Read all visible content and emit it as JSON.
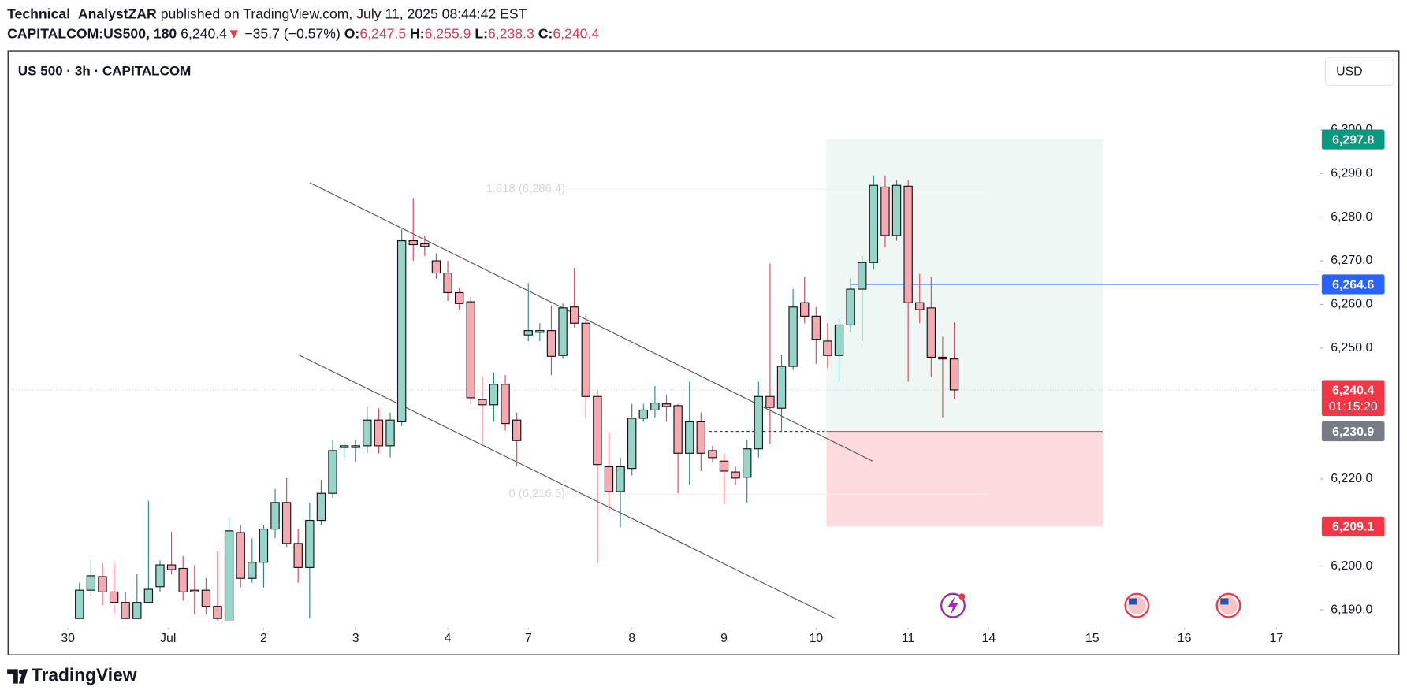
{
  "header": {
    "author": "Technical_AnalystZAR",
    "published": "published on TradingView.com, July 11, 2025 08:44:42 EST",
    "symbol": "CAPITALCOM:US500, 180",
    "last": "6,240.4",
    "arrow": "▼",
    "change": "−35.7 (−0.57%)",
    "ohlc": [
      {
        "label": "O:",
        "value": "6,247.5"
      },
      {
        "label": "H:",
        "value": "6,255.9"
      },
      {
        "label": "L:",
        "value": "6,238.3"
      },
      {
        "label": "C:",
        "value": "6,240.4"
      }
    ]
  },
  "footer": {
    "brand": "TradingView"
  },
  "chart_data": {
    "type": "candlestick",
    "title": "US 500 · 3h · CAPITALCOM",
    "currency": "USD",
    "up_color": "#97d5c8",
    "down_color": "#f5a9b1",
    "outline_color": "#111111",
    "open": [
      6188.0,
      6194.5,
      6197.6,
      6194.1,
      6191.7,
      6188.0,
      6191.7,
      6195.3,
      6200.3,
      6199.5,
      6194.5,
      6194.5,
      6190.8,
      6187.0,
      6207.7,
      6197.2,
      6200.9,
      6208.5,
      6214.6,
      6205.2,
      6199.7,
      6210.5,
      6216.7,
      6227.2,
      6227.2,
      6227.6,
      6233.5,
      6227.6,
      6233.1,
      6274.6,
      6273.9,
      6270.0,
      6267.2,
      6262.7,
      6260.6,
      6238.2,
      6237.0,
      6241.7,
      6233.5,
      6253.0,
      6253.6,
      6254.0,
      6248.3,
      6259.4,
      6255.7,
      6238.9,
      6222.8,
      6217.1,
      6222.4,
      6233.9,
      6235.8,
      6237.2,
      6236.8,
      6225.9,
      6233.1,
      6226.5,
      6224.1,
      6221.6,
      6220.4,
      6226.9,
      6238.9,
      6236.2,
      6245.8,
      6260.4,
      6257.3,
      6251.6,
      6248.3,
      6255.3,
      6263.5,
      6269.6,
      6286.9,
      6275.8,
      6287.1,
      6260.4,
      6259.2,
      6247.9,
      6247.5
    ],
    "high": [
      6196.2,
      6201.3,
      6200.7,
      6200.7,
      6194.1,
      6198.2,
      6215.0,
      6201.3,
      6207.9,
      6202.3,
      6200.3,
      6197.2,
      6203.4,
      6210.9,
      6209.5,
      6206.4,
      6209.5,
      6217.7,
      6220.2,
      6208.5,
      6214.6,
      6219.8,
      6229.0,
      6228.6,
      6229.0,
      6236.6,
      6236.2,
      6235.2,
      6277.2,
      6284.4,
      6275.8,
      6271.7,
      6270.0,
      6263.9,
      6261.8,
      6243.4,
      6244.4,
      6243.8,
      6235.2,
      6264.9,
      6255.7,
      6259.8,
      6260.2,
      6268.4,
      6257.7,
      6240.3,
      6231.0,
      6224.9,
      6237.2,
      6237.2,
      6241.3,
      6239.3,
      6237.2,
      6242.3,
      6235.2,
      6227.6,
      6225.9,
      6222.8,
      6229.0,
      6242.3,
      6269.4,
      6248.5,
      6263.5,
      6266.3,
      6259.4,
      6255.7,
      6256.7,
      6265.9,
      6271.1,
      6289.5,
      6289.5,
      6288.5,
      6288.5,
      6267.0,
      6266.3,
      6252.6,
      6255.9
    ],
    "low": [
      6188.0,
      6193.1,
      6191.0,
      6189.0,
      6188.0,
      6188.0,
      6191.7,
      6194.1,
      6198.2,
      6192.1,
      6189.0,
      6189.0,
      6186.0,
      6186.0,
      6195.1,
      6196.2,
      6195.1,
      6206.4,
      6204.4,
      6196.2,
      6188.0,
      6209.5,
      6215.7,
      6224.9,
      6223.9,
      6225.9,
      6225.9,
      6224.9,
      6232.1,
      6270.0,
      6271.1,
      6265.9,
      6260.8,
      6258.8,
      6237.2,
      6228.0,
      6233.1,
      6231.1,
      6222.8,
      6251.6,
      6251.6,
      6243.8,
      6247.5,
      6254.7,
      6234.1,
      6200.7,
      6212.6,
      6208.9,
      6220.8,
      6233.1,
      6234.1,
      6233.1,
      6216.7,
      6218.7,
      6221.8,
      6223.9,
      6214.2,
      6218.7,
      6214.6,
      6224.9,
      6228.0,
      6231.0,
      6245.0,
      6255.7,
      6246.4,
      6245.4,
      6242.3,
      6253.6,
      6251.6,
      6268.0,
      6273.1,
      6274.6,
      6242.3,
      6255.7,
      6243.4,
      6234.1,
      6238.3
    ],
    "close": [
      6194.5,
      6197.8,
      6194.1,
      6191.7,
      6188.0,
      6191.7,
      6194.7,
      6200.3,
      6199.2,
      6194.1,
      6194.1,
      6190.8,
      6188.0,
      6208.1,
      6197.2,
      6200.9,
      6208.5,
      6214.6,
      6205.2,
      6199.7,
      6210.5,
      6216.7,
      6226.5,
      6227.6,
      6227.6,
      6233.5,
      6227.6,
      6233.5,
      6274.6,
      6273.7,
      6273.3,
      6267.2,
      6262.7,
      6260.2,
      6238.6,
      6237.0,
      6241.7,
      6232.7,
      6228.8,
      6254.0,
      6254.0,
      6248.1,
      6259.2,
      6255.7,
      6238.9,
      6223.3,
      6217.1,
      6222.8,
      6233.9,
      6235.8,
      6237.4,
      6236.6,
      6225.9,
      6233.1,
      6225.9,
      6224.9,
      6221.8,
      6220.2,
      6226.9,
      6238.9,
      6236.4,
      6245.8,
      6259.4,
      6257.3,
      6252.0,
      6248.3,
      6255.3,
      6263.5,
      6269.6,
      6287.3,
      6275.8,
      6287.3,
      6260.4,
      6258.8,
      6247.9,
      6247.5,
      6240.4
    ],
    "xlim": [
      -6.2,
      107.7
    ],
    "xticks": [
      {
        "value": -1,
        "label": "30"
      },
      {
        "value": 7.7,
        "label": "Jul"
      },
      {
        "value": 16,
        "label": "2"
      },
      {
        "value": 24,
        "label": "3"
      },
      {
        "value": 32,
        "label": "4"
      },
      {
        "value": 39,
        "label": "7"
      },
      {
        "value": 48,
        "label": "8"
      },
      {
        "value": 56,
        "label": "9"
      },
      {
        "value": 64,
        "label": "10"
      },
      {
        "value": 72,
        "label": "11"
      },
      {
        "value": 79,
        "label": "14"
      },
      {
        "value": 88,
        "label": "15"
      },
      {
        "value": 96,
        "label": "16"
      },
      {
        "value": 104,
        "label": "17"
      }
    ],
    "ylim": [
      6187.5,
      6317
    ],
    "yticks": [
      {
        "value": 6190,
        "label": "6,190.0"
      },
      {
        "value": 6200,
        "label": "6,200.0"
      },
      {
        "value": 6220,
        "label": "6,220.0"
      },
      {
        "value": 6250,
        "label": "6,250.0"
      },
      {
        "value": 6260,
        "label": "6,260.0"
      },
      {
        "value": 6270,
        "label": "6,270.0"
      },
      {
        "value": 6280,
        "label": "6,280.0"
      },
      {
        "value": 6290,
        "label": "6,290.0"
      },
      {
        "value": 6300,
        "label": "6,300.0"
      }
    ],
    "price_labels": [
      {
        "value": 6297.8,
        "label": "6,297.8",
        "color": "#089981"
      },
      {
        "value": 6264.6,
        "label": "6,264.6",
        "color": "#2962ff"
      },
      {
        "value": 6240.4,
        "label": "6,240.4",
        "color": "#f23645",
        "countdown": "01:15:20"
      },
      {
        "value": 6230.9,
        "label": "6,230.9",
        "color": "#787b86"
      },
      {
        "value": 6209.1,
        "label": "6,209.1",
        "color": "#f23645"
      }
    ],
    "position": {
      "entry": 6230.9,
      "target": 6297.8,
      "stop": 6209.1,
      "x": [
        64.9,
        88.9
      ],
      "profit_color": "#eef7f4",
      "loss_color": "#fcdadd"
    },
    "channel": [
      {
        "x": [
          20,
          68.9
        ],
        "y": [
          6287.9,
          6224.1
        ]
      },
      {
        "x": [
          19,
          65.7
        ],
        "y": [
          6248.5,
          6188.0
        ]
      }
    ],
    "hline": {
      "value": 6264.6,
      "x": 67,
      "color": "#2962ff"
    },
    "dashed": {
      "value": 6230.9,
      "x": [
        54.7,
        64.9
      ]
    },
    "current_price": 6240.4,
    "fib": {
      "x": [
        42.2,
        79
      ],
      "levels": [
        {
          "text": "1.618 (6,286.4)",
          "value": 6286.4
        },
        {
          "text": "0 (6,216.5)",
          "value": 6216.5
        }
      ]
    }
  }
}
